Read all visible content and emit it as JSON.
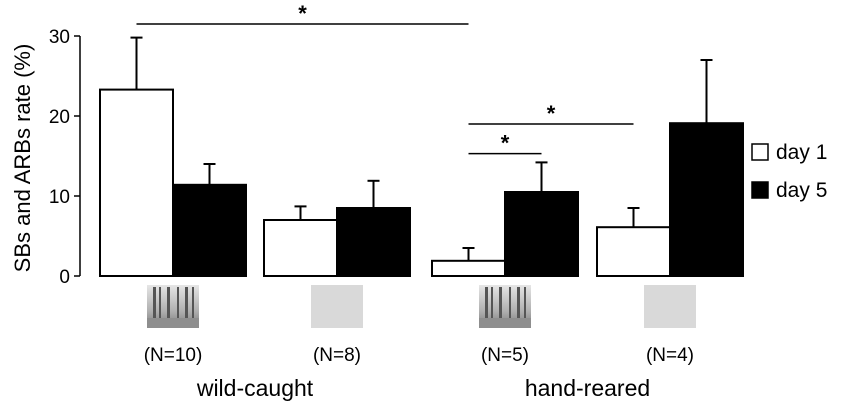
{
  "chart_data": {
    "type": "bar",
    "ylabel": "SBs and ARBs rate (%)",
    "ylim": [
      0,
      30
    ],
    "yticks": [
      0,
      10,
      20,
      30
    ],
    "categories": [
      "(N=10)",
      "(N=8)",
      "(N=5)",
      "(N=4)"
    ],
    "category_images": [
      "forest-photo",
      "gray-square",
      "forest-photo",
      "gray-square"
    ],
    "groups": [
      {
        "label": "wild-caught",
        "categories": [
          0,
          1
        ]
      },
      {
        "label": "hand-reared",
        "categories": [
          2,
          3
        ]
      }
    ],
    "series": [
      {
        "name": "day 1",
        "color": "#ffffff",
        "values": [
          23.3,
          7.0,
          1.9,
          6.1
        ],
        "errors": [
          6.5,
          1.7,
          1.6,
          2.4
        ]
      },
      {
        "name": "day 5",
        "color": "#000000",
        "values": [
          11.4,
          8.5,
          10.5,
          19.1
        ],
        "errors": [
          2.6,
          3.4,
          3.7,
          7.9
        ]
      }
    ],
    "significance": [
      {
        "label": "*",
        "from": [
          0,
          0
        ],
        "to": [
          2,
          0
        ],
        "y": 31.5
      },
      {
        "label": "*",
        "from": [
          2,
          0
        ],
        "to": [
          2,
          1
        ],
        "y": 15.3
      },
      {
        "label": "*",
        "from": [
          2,
          0
        ],
        "to": [
          3,
          0
        ],
        "y": 19.0
      }
    ],
    "legend_position": "right"
  }
}
